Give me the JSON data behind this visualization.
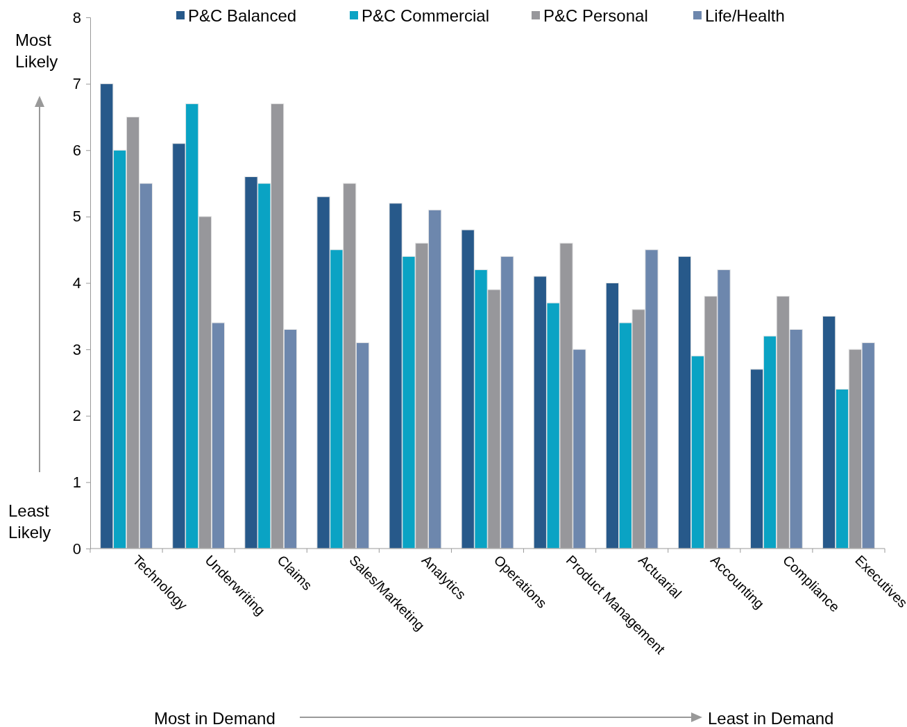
{
  "chart_data": {
    "type": "bar",
    "categories": [
      "Technology",
      "Underwriting",
      "Claims",
      "Sales/Marketing",
      "Analytics",
      "Operations",
      "Product Management",
      "Actuarial",
      "Accounting",
      "Compliance",
      "Executives"
    ],
    "series": [
      {
        "name": "P&C Balanced",
        "color": "#27598a",
        "values": [
          7.0,
          6.1,
          5.6,
          5.3,
          5.2,
          4.8,
          4.1,
          4.0,
          4.4,
          2.7,
          3.5
        ]
      },
      {
        "name": "P&C Commercial",
        "color": "#0aa3c4",
        "values": [
          6.0,
          6.7,
          5.5,
          4.5,
          4.4,
          4.2,
          3.7,
          3.4,
          2.9,
          3.2,
          2.4
        ]
      },
      {
        "name": "P&C Personal",
        "color": "#97979b",
        "values": [
          6.5,
          5.0,
          6.7,
          5.5,
          4.6,
          3.9,
          4.6,
          3.6,
          3.8,
          3.8,
          3.0
        ]
      },
      {
        "name": "Life/Health",
        "color": "#6d87ad",
        "values": [
          5.5,
          3.4,
          3.3,
          3.1,
          5.1,
          4.4,
          3.0,
          4.5,
          4.2,
          3.3,
          3.1
        ]
      }
    ],
    "ylim": [
      0,
      8
    ],
    "yticks": [
      0,
      1,
      2,
      3,
      4,
      5,
      6,
      7,
      8
    ],
    "legend": "top",
    "annotations": [
      "Most Likely",
      "Least Likely",
      "Most in Demand",
      "Least in Demand"
    ]
  }
}
